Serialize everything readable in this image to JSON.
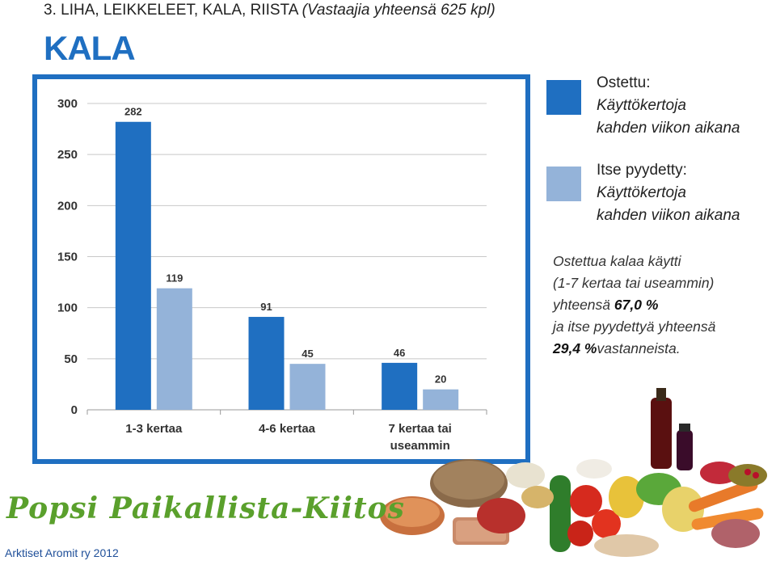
{
  "header": {
    "section_title": "3. LIHA, LEIKKELEET, KALA, RIISTA",
    "respondents": "(Vastaajia yhteensä 625 kpl)",
    "category_title": "KALA"
  },
  "legend": [
    {
      "line1": "Ostettu:",
      "line2": "Käyttökertoja",
      "line3": "kahden viikon aikana",
      "color": "#1f6fc1"
    },
    {
      "line1": "Itse pyydetty:",
      "line2": "Käyttökertoja",
      "line3": "kahden viikon aikana",
      "color": "#94b3d9"
    }
  ],
  "note": {
    "line1": "Ostettua kalaa käytti",
    "line2": "(1-7 kertaa tai useammin)",
    "line3_prefix": "yhteensä",
    "line3_value": "67,0 %",
    "line4": "ja itse pyydettyä yhteensä",
    "line5_value": "29,4 %",
    "line5_suffix": "vastanneista."
  },
  "logo_text": "Popsi Paikallista-Kiitos",
  "footer": "Arktiset Aromit ry 2012",
  "chart_data": {
    "type": "bar",
    "categories": [
      "1-3 kertaa",
      "4-6 kertaa",
      "7 kertaa tai useammin"
    ],
    "category_lines": [
      [
        "1-3 kertaa"
      ],
      [
        "4-6 kertaa"
      ],
      [
        "7 kertaa tai",
        "useammin"
      ]
    ],
    "series": [
      {
        "name": "Ostettu",
        "values": [
          282,
          91,
          46
        ],
        "color": "#1f6fc1"
      },
      {
        "name": "Itse pyydetty",
        "values": [
          119,
          45,
          20
        ],
        "color": "#94b3d9"
      }
    ],
    "ylim": [
      0,
      300
    ],
    "yticks": [
      0,
      50,
      100,
      150,
      200,
      250,
      300
    ],
    "grid": true,
    "legend": "right"
  }
}
